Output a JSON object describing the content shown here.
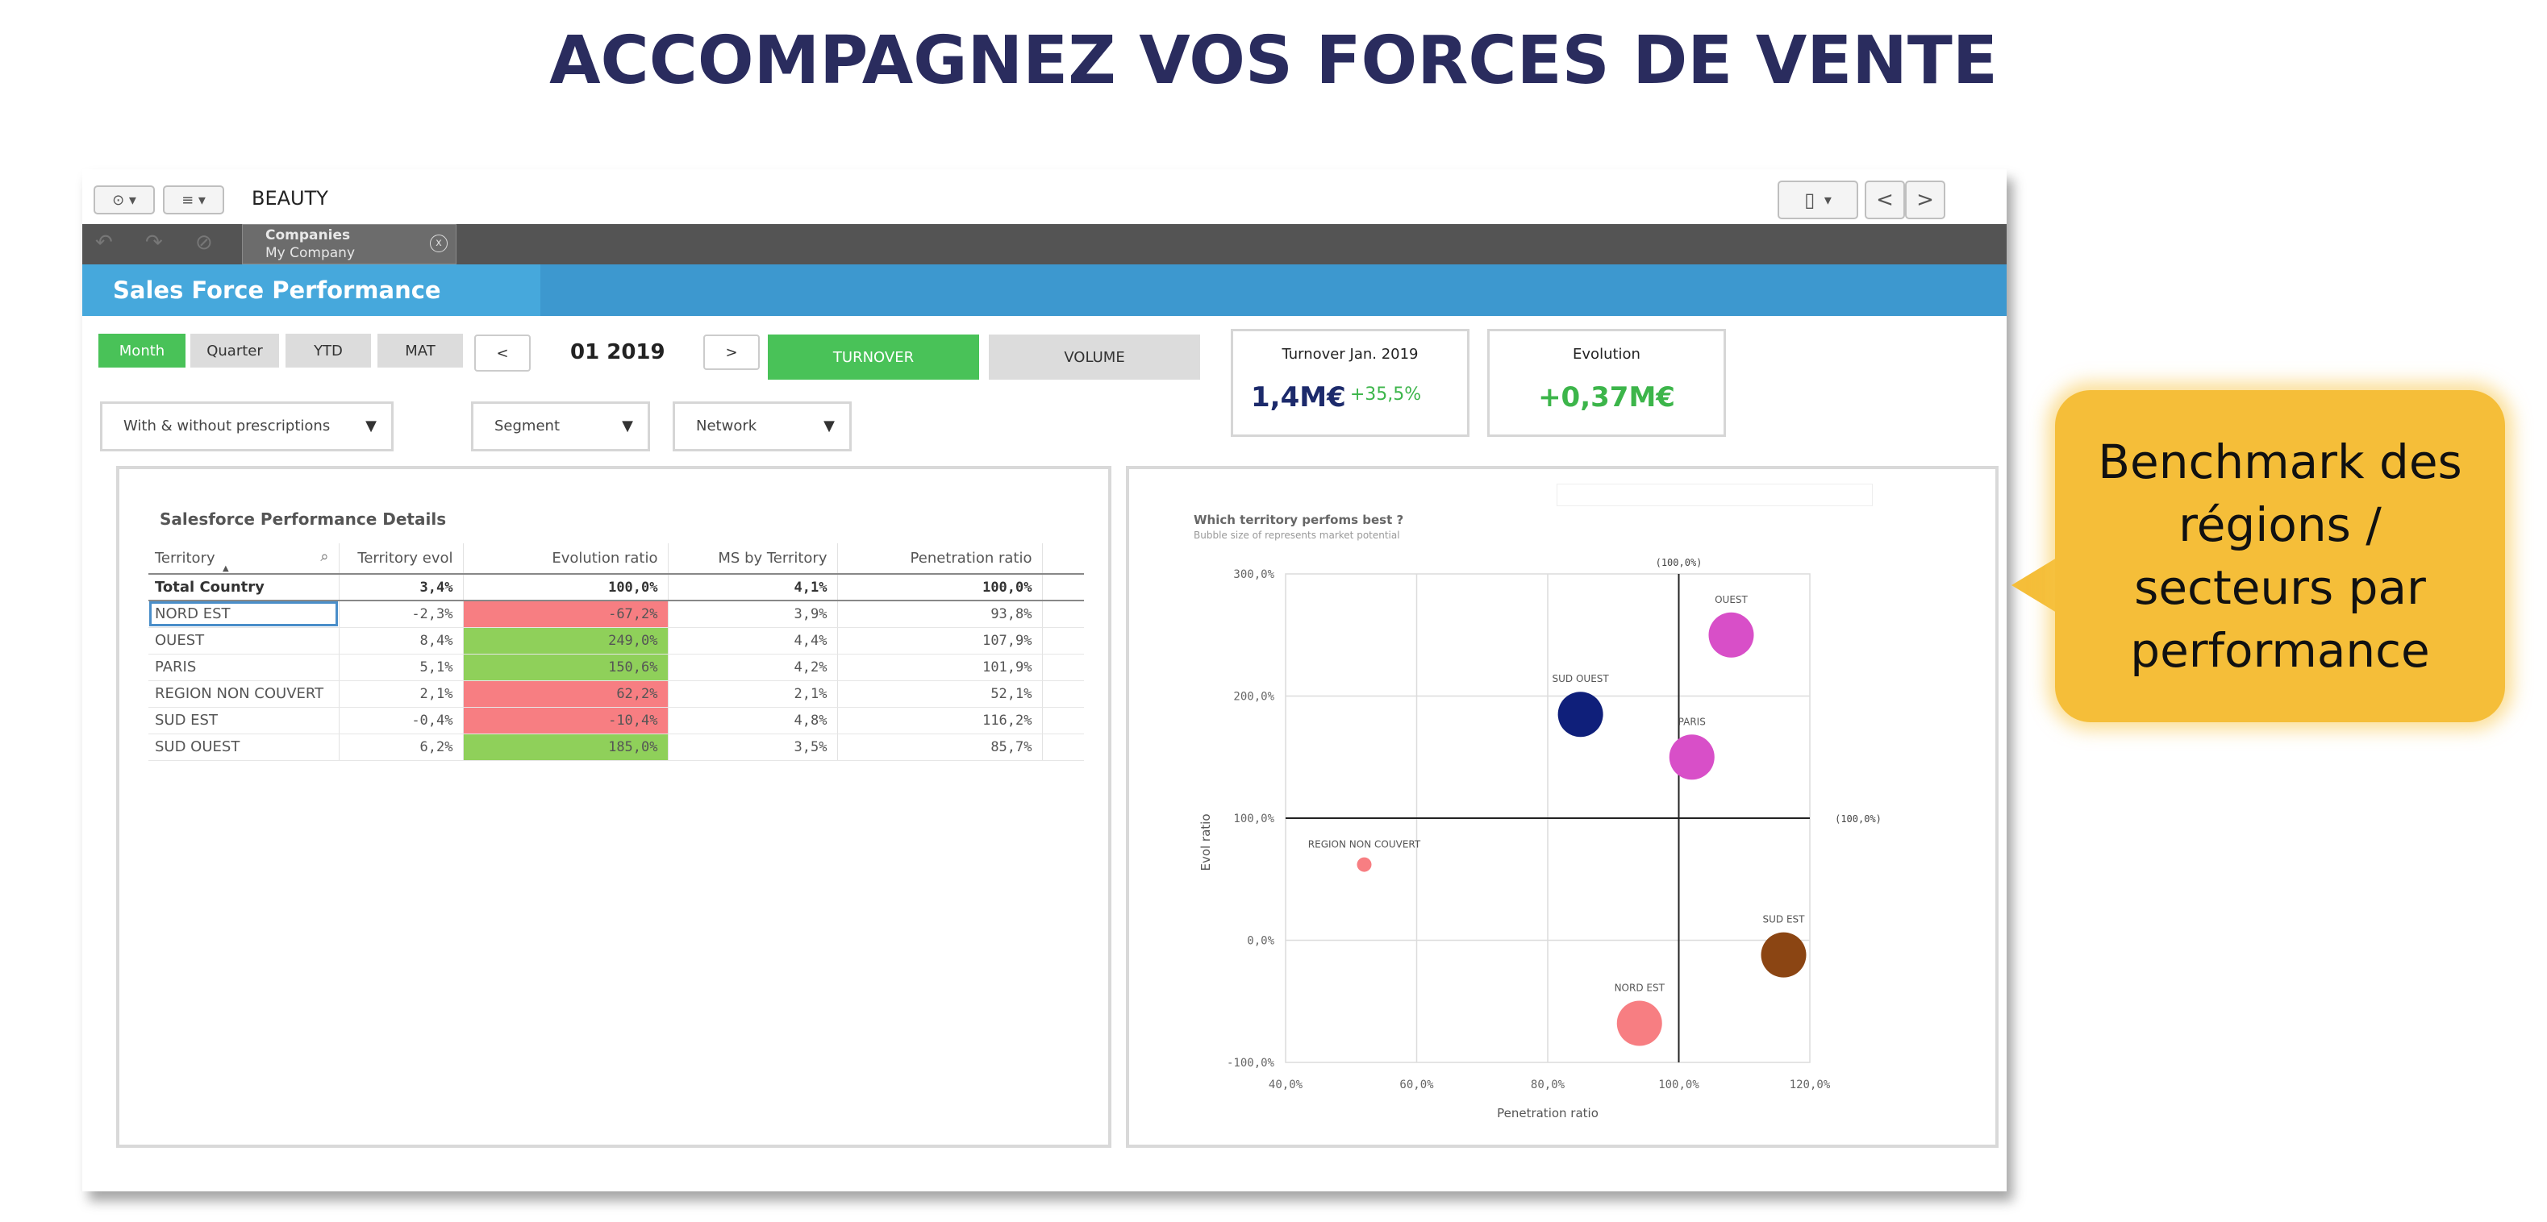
{
  "slide": {
    "title": "ACCOMPAGNEZ VOS FORCES DE VENTE"
  },
  "toolbar": {
    "app_name": "BEAUTY",
    "prev_label": "<",
    "next_label": ">"
  },
  "selections": {
    "field": "Companies",
    "value": "My Company",
    "clear_label": "x"
  },
  "header": {
    "title": "Sales Force Performance"
  },
  "period_buttons": [
    {
      "label": "Month",
      "active": true
    },
    {
      "label": "Quarter",
      "active": false
    },
    {
      "label": "YTD",
      "active": false
    },
    {
      "label": "MAT",
      "active": false
    }
  ],
  "period_nav": {
    "prev": "<",
    "current": "01 2019",
    "next": ">"
  },
  "measure_buttons": [
    {
      "label": "TURNOVER",
      "active": true
    },
    {
      "label": "VOLUME",
      "active": false
    }
  ],
  "kpis": [
    {
      "title": "Turnover Jan. 2019",
      "value": "1,4M€",
      "delta": "+35,5%"
    },
    {
      "title": "Evolution",
      "value": "+0,37M€"
    }
  ],
  "filters": [
    {
      "label": "With & without prescriptions"
    },
    {
      "label": "Segment"
    },
    {
      "label": "Network"
    }
  ],
  "table": {
    "title": "Salesforce Performance Details",
    "columns": [
      "Territory",
      "Territory evol",
      "Evolution ratio",
      "MS by Territory",
      "Penetration ratio"
    ],
    "total": {
      "territory": "Total Country",
      "evol": "3,4%",
      "ratio": "100,0%",
      "ms": "4,1%",
      "pen": "100,0%"
    },
    "rows": [
      {
        "territory": "NORD EST",
        "evol": "-2,3%",
        "ratio": "-67,2%",
        "ms": "3,9%",
        "pen": "93,8%",
        "status": "neg"
      },
      {
        "territory": "OUEST",
        "evol": "8,4%",
        "ratio": "249,0%",
        "ms": "4,4%",
        "pen": "107,9%",
        "status": "pos"
      },
      {
        "territory": "PARIS",
        "evol": "5,1%",
        "ratio": "150,6%",
        "ms": "4,2%",
        "pen": "101,9%",
        "status": "pos"
      },
      {
        "territory": "REGION NON COUVERT",
        "evol": "2,1%",
        "ratio": "62,2%",
        "ms": "2,1%",
        "pen": "52,1%",
        "status": "neg"
      },
      {
        "territory": "SUD EST",
        "evol": "-0,4%",
        "ratio": "-10,4%",
        "ms": "4,8%",
        "pen": "116,2%",
        "status": "neg"
      },
      {
        "territory": "SUD OUEST",
        "evol": "6,2%",
        "ratio": "185,0%",
        "ms": "3,5%",
        "pen": "85,7%",
        "status": "pos"
      }
    ]
  },
  "chart_data": {
    "type": "scatter",
    "title": "Which territory perfoms best ?",
    "subtitle": "Bubble size of represents market potential",
    "xlabel": "Penetration ratio",
    "ylabel": "Evol ratio",
    "xlim": [
      40,
      120
    ],
    "ylim": [
      -100,
      300
    ],
    "x_ticks": [
      "40,0%",
      "60,0%",
      "80,0%",
      "100,0%",
      "120,0%"
    ],
    "y_ticks": [
      "300,0%",
      "200,0%",
      "100,0%",
      "0,0%",
      "-100,0%"
    ],
    "reference_labels": {
      "vertical": "(100,0%)",
      "horizontal": "(100,0%)"
    },
    "grid": true,
    "points": [
      {
        "label": "OUEST",
        "x": 108,
        "y": 250,
        "size": "large",
        "color": "#d84fc8"
      },
      {
        "label": "SUD OUEST",
        "x": 85,
        "y": 185,
        "size": "large",
        "color": "#0f1f7a"
      },
      {
        "label": "PARIS",
        "x": 102,
        "y": 150,
        "size": "large",
        "color": "#d84fc8"
      },
      {
        "label": "REGION NON COUVERT",
        "x": 52,
        "y": 62,
        "size": "small",
        "color": "#f77e82"
      },
      {
        "label": "SUD EST",
        "x": 116,
        "y": -12,
        "size": "large",
        "color": "#8b4513"
      },
      {
        "label": "NORD EST",
        "x": 94,
        "y": -68,
        "size": "large",
        "color": "#f77e82"
      }
    ]
  },
  "callout": {
    "text": "Benchmark des régions / secteurs par performance"
  },
  "colors": {
    "header": "#3d98cf",
    "active": "#49c258",
    "negative": "#f77e82",
    "positive": "#8fd05a",
    "title": "#2a2c5e",
    "callout": "#f5be39"
  }
}
